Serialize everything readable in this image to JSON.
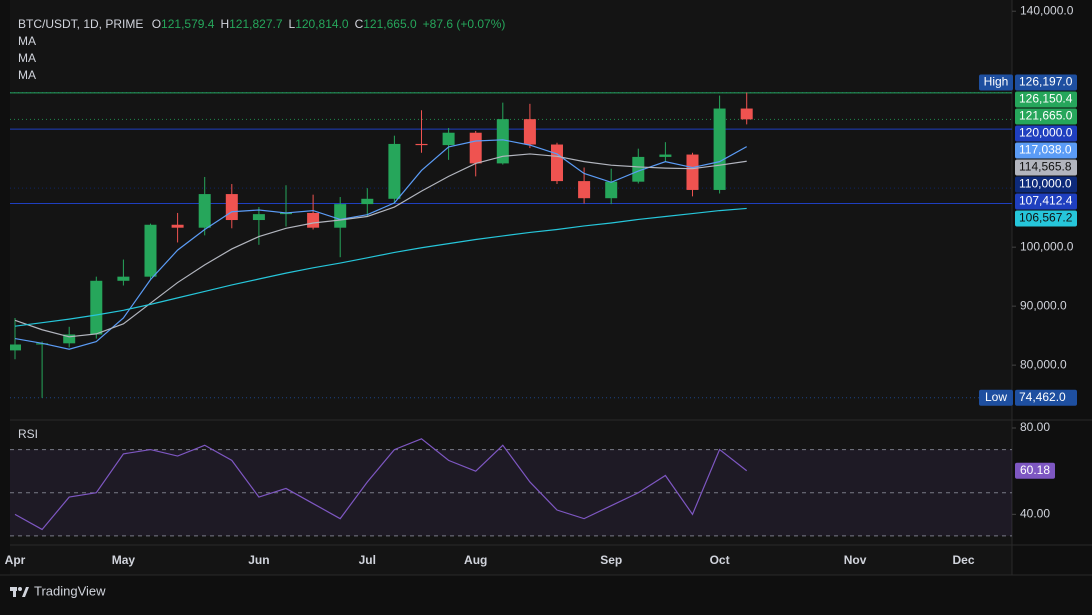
{
  "header": {
    "symbol": "BTC/USDT, 1D, PRIME",
    "ohlc": [
      {
        "key": "O",
        "value": "121,579.4"
      },
      {
        "key": "H",
        "value": "121,827.7"
      },
      {
        "key": "L",
        "value": "120,814.0"
      },
      {
        "key": "C",
        "value": "121,665.0"
      }
    ],
    "change": "+87.6 (+0.07%)"
  },
  "chart_data": [
    {
      "type": "candlestick",
      "categories": [
        "Apr",
        null,
        null,
        null,
        "May",
        null,
        null,
        null,
        null,
        "Jun",
        null,
        null,
        null,
        "Jul",
        null,
        null,
        null,
        "Aug",
        null,
        null,
        null,
        null,
        "Sep",
        null,
        null,
        null,
        "Oct",
        null,
        null,
        null,
        null,
        "Nov",
        null,
        null,
        null,
        "Dec",
        null
      ],
      "open": [
        82500,
        83500,
        83700,
        85200,
        94300,
        95000,
        103800,
        103300,
        109000,
        104600,
        105600,
        105800,
        103300,
        107300,
        108200,
        117500,
        117300,
        119400,
        114200,
        121700,
        117400,
        111200,
        108300,
        111100,
        115300,
        115700,
        109700,
        123500,
        null,
        null,
        null,
        null,
        null,
        null,
        null,
        null,
        null
      ],
      "high": [
        88000,
        84000,
        86500,
        95000,
        97900,
        104000,
        105800,
        111900,
        110700,
        106800,
        110500,
        108900,
        108500,
        110000,
        118900,
        123200,
        120200,
        119700,
        124500,
        124300,
        117700,
        113500,
        113300,
        116700,
        117800,
        116000,
        125700,
        126197,
        null,
        null,
        null,
        null,
        null,
        null,
        null,
        null,
        null
      ],
      "low": [
        81000,
        74462,
        83000,
        84500,
        93500,
        94500,
        100800,
        102000,
        103200,
        100400,
        103500,
        103000,
        98300,
        105200,
        107500,
        116000,
        114800,
        112000,
        114000,
        116800,
        110700,
        107400,
        107300,
        110800,
        114500,
        108600,
        109100,
        120814,
        null,
        null,
        null,
        null,
        null,
        null,
        null,
        null,
        null
      ],
      "close": [
        83500,
        83700,
        85200,
        94300,
        95000,
        103800,
        103300,
        109000,
        104600,
        105600,
        105800,
        103300,
        107300,
        108200,
        117500,
        117300,
        119400,
        114200,
        121700,
        117400,
        111200,
        108300,
        111100,
        115300,
        115700,
        109700,
        123500,
        121665,
        null,
        null,
        null,
        null,
        null,
        null,
        null,
        null,
        null
      ],
      "up_color": "#26a65b",
      "down_color": "#ef5350",
      "series": [
        {
          "name": "MA",
          "color": "#5b9cf6",
          "values": [
            84500,
            83700,
            82700,
            84000,
            88000,
            94500,
            99500,
            103000,
            106000,
            106300,
            105800,
            106200,
            104700,
            105500,
            107500,
            113000,
            117000,
            118000,
            118200,
            117300,
            115800,
            112500,
            111000,
            112900,
            114500,
            113500,
            114500,
            117038,
            null,
            null,
            null,
            null,
            null,
            null,
            null,
            null,
            null
          ]
        },
        {
          "name": "MA",
          "color": "#b2b5be",
          "values": [
            87600,
            86000,
            84800,
            85300,
            87000,
            90500,
            94000,
            97000,
            99700,
            101800,
            103200,
            104100,
            104600,
            105200,
            106800,
            109500,
            112000,
            114200,
            115400,
            115800,
            115400,
            114500,
            113900,
            113600,
            113400,
            113300,
            113900,
            114565.8,
            null,
            null,
            null,
            null,
            null,
            null,
            null,
            null,
            null
          ]
        },
        {
          "name": "MA",
          "color": "#26c6da",
          "values": [
            86600,
            87200,
            87800,
            88500,
            89300,
            90300,
            91400,
            92500,
            93600,
            94600,
            95600,
            96500,
            97300,
            98200,
            99100,
            99900,
            100600,
            101300,
            101900,
            102500,
            103000,
            103600,
            104100,
            104700,
            105200,
            105700,
            106200,
            106567.2,
            null,
            null,
            null,
            null,
            null,
            null,
            null,
            null,
            null
          ]
        }
      ],
      "ylim": [
        70700,
        141900
      ],
      "yticks": [
        {
          "value": 80000,
          "label": "80,000.0"
        },
        {
          "value": 90000,
          "label": "90,000.0"
        },
        {
          "value": 100000,
          "label": "100,000.0"
        },
        {
          "value": 140000,
          "label": "140,000.0"
        }
      ],
      "price_labels": [
        {
          "value": 126197,
          "label": "126,197.0",
          "tag": "High",
          "color": "#1e4fa0",
          "line": "dotted"
        },
        {
          "value": 126150.4,
          "label": "126,150.4",
          "color": "#26a65b",
          "line": "solid"
        },
        {
          "value": 121665,
          "label": "121,665.0",
          "color": "#26a65b",
          "line": "dotted"
        },
        {
          "value": 120000,
          "label": "120,000.0",
          "color": "#1f3fbf",
          "line": "solid"
        },
        {
          "value": 117038,
          "label": "117,038.0",
          "color": "#5b9cf6",
          "line": "none"
        },
        {
          "value": 114565.8,
          "label": "114,565.8",
          "color": "#b2b5be",
          "line": "none"
        },
        {
          "value": 110000,
          "label": "110,000.0",
          "color": "#0d2a7a",
          "line": "dotted"
        },
        {
          "value": 107412.4,
          "label": "107,412.4",
          "color": "#1f3fbf",
          "line": "solid"
        },
        {
          "value": 106567.2,
          "label": "106,567.2",
          "color": "#26c6da",
          "line": "none"
        },
        {
          "value": 74462,
          "label": "74,462.0",
          "tag": "Low",
          "color": "#1e4fa0",
          "line": "dotted"
        }
      ]
    },
    {
      "type": "line",
      "title": "RSI",
      "color": "#7e57c2",
      "values": [
        40,
        33,
        48,
        50,
        68,
        70,
        67,
        72,
        65,
        48,
        52,
        45,
        38,
        55,
        70,
        75,
        65,
        60,
        72,
        55,
        42,
        38,
        44,
        50,
        58,
        40,
        70,
        60.18,
        null,
        null,
        null,
        null,
        null,
        null,
        null,
        null,
        null
      ],
      "ylim": [
        25.8,
        83.7
      ],
      "yticks": [
        {
          "value": 80,
          "label": "80.00"
        },
        {
          "value": 40,
          "label": "40.00"
        }
      ],
      "levels": [
        30,
        50,
        70
      ]
    }
  ],
  "footer": {
    "brand": "TradingView"
  }
}
